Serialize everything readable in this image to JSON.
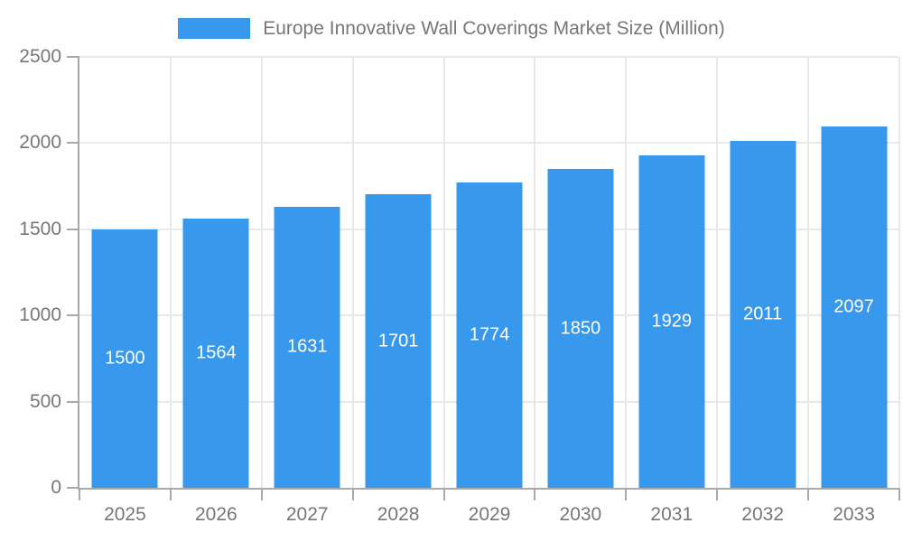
{
  "legend": {
    "label": "Europe Innovative Wall Coverings Market Size (Million)"
  },
  "chart_data": {
    "type": "bar",
    "title": "Europe Innovative Wall Coverings Market Size (Million)",
    "categories": [
      "2025",
      "2026",
      "2027",
      "2028",
      "2029",
      "2030",
      "2031",
      "2032",
      "2033"
    ],
    "series": [
      {
        "name": "Europe Innovative Wall Coverings Market Size (Million)",
        "values": [
          1500,
          1564,
          1631,
          1701,
          1774,
          1850,
          1929,
          2011,
          2097
        ]
      }
    ],
    "value_labels": [
      "1500",
      "1564",
      "1631",
      "1701",
      "1774",
      "1850",
      "1929",
      "2011",
      "2097"
    ],
    "xlabel": "",
    "ylabel": "",
    "ylim": [
      0,
      2500
    ],
    "yticks": [
      0,
      500,
      1000,
      1500,
      2000,
      2500
    ],
    "grid": true,
    "legend_position": "top",
    "colors": {
      "bar": "#3898ec",
      "grid": "#e8e8e8",
      "axis": "#a9a9a9",
      "tick_text": "#777777",
      "value_label": "#ffffff",
      "background": "#ffffff"
    }
  }
}
